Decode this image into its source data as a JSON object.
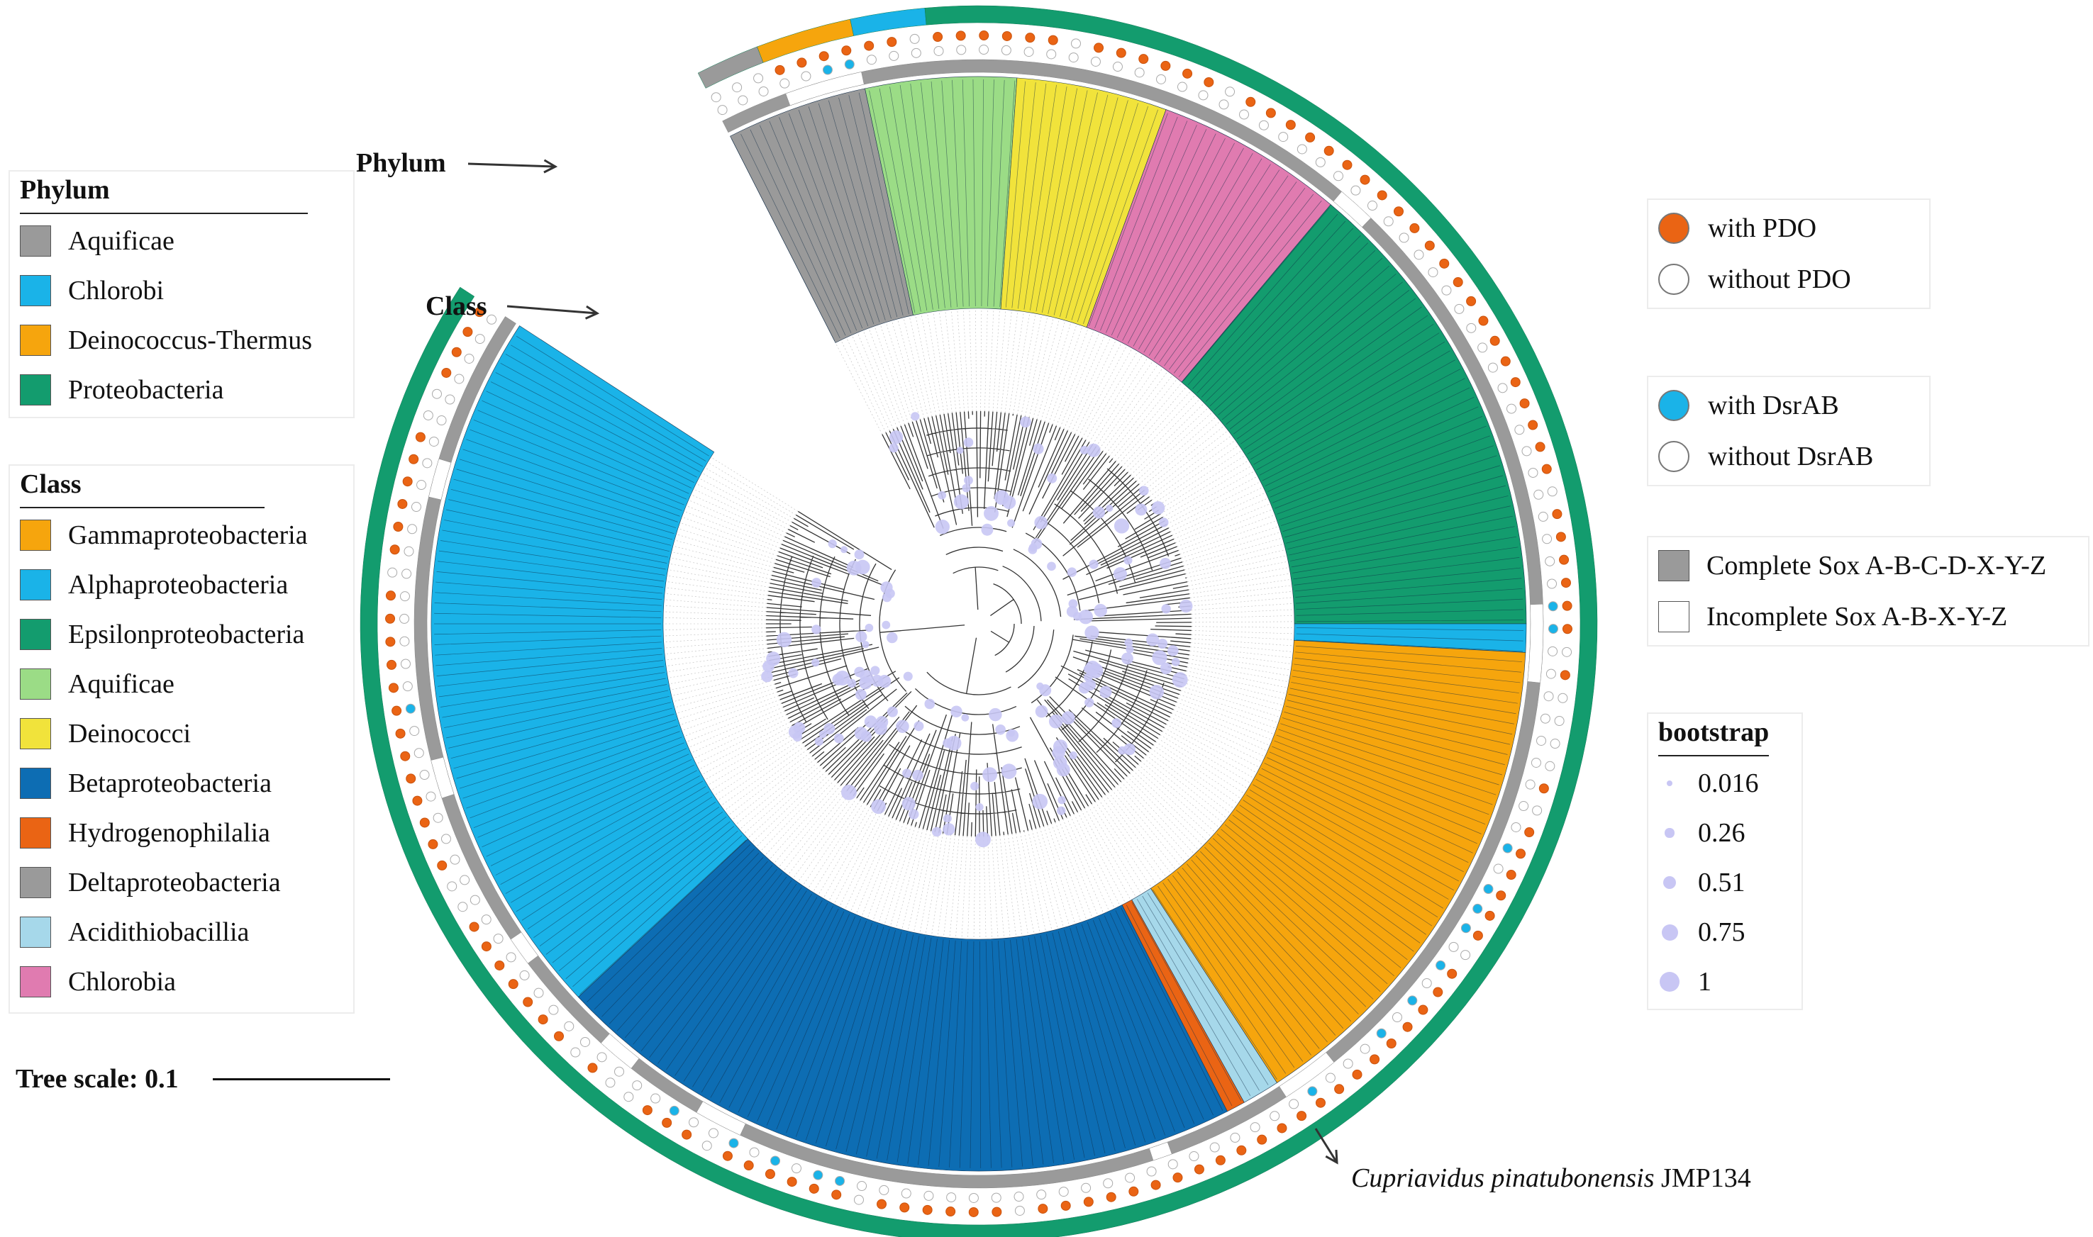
{
  "legends": {
    "phylum": {
      "title": "Phylum",
      "items": [
        {
          "label": "Aquificae",
          "color": "#9a9a9a"
        },
        {
          "label": "Chlorobi",
          "color": "#1ab3e8"
        },
        {
          "label": "Deinococcus-Thermus",
          "color": "#f6a50d"
        },
        {
          "label": "Proteobacteria",
          "color": "#139c6e"
        }
      ]
    },
    "class": {
      "title": "Class",
      "items": [
        {
          "label": "Gammaproteobacteria",
          "color": "#f6a50d"
        },
        {
          "label": "Alphaproteobacteria",
          "color": "#1ab3e8"
        },
        {
          "label": "Epsilonproteobacteria",
          "color": "#139c6e"
        },
        {
          "label": "Aquificae",
          "color": "#9bdc86"
        },
        {
          "label": "Deinococci",
          "color": "#f1e33b"
        },
        {
          "label": "Betaproteobacteria",
          "color": "#0d6db3"
        },
        {
          "label": "Hydrogenophilalia",
          "color": "#ea6414"
        },
        {
          "label": "Deltaproteobacteria",
          "color": "#9a9a9a"
        },
        {
          "label": "Acidithiobacillia",
          "color": "#a6d8ea"
        },
        {
          "label": "Chlorobia",
          "color": "#e07bb0"
        }
      ]
    },
    "pdo": {
      "items": [
        {
          "label": "with PDO",
          "color": "#ea6414"
        },
        {
          "label": "without PDO",
          "color": "#ffffff"
        }
      ]
    },
    "dsrab": {
      "items": [
        {
          "label": "with DsrAB",
          "color": "#1ab3e8"
        },
        {
          "label": "without DsrAB",
          "color": "#ffffff"
        }
      ]
    },
    "sox": {
      "items": [
        {
          "label": "Complete Sox A-B-C-D-X-Y-Z",
          "color": "#9a9a9a"
        },
        {
          "label": "Incomplete Sox A-B-X-Y-Z",
          "color": "#ffffff"
        }
      ]
    },
    "bootstrap": {
      "title": "bootstrap",
      "items": [
        {
          "label": "0.016",
          "value": 0.016
        },
        {
          "label": "0.26",
          "value": 0.26
        },
        {
          "label": "0.51",
          "value": 0.51
        },
        {
          "label": "0.75",
          "value": 0.75
        },
        {
          "label": "1",
          "value": 1
        }
      ]
    }
  },
  "pointers": {
    "phylum": "Phylum",
    "class": "Class"
  },
  "tree_scale": "Tree scale: 0.1",
  "annotation": {
    "species": "Cupriavidus pinatubonensis",
    "strain": "JMP134"
  },
  "colors": {
    "orange": "#f6a50d",
    "sky": "#1ab3e8",
    "green": "#139c6e",
    "lightgreen": "#9bdc86",
    "yellow": "#f1e33b",
    "navy": "#0d6db3",
    "red": "#ea6414",
    "grey": "#9a9a9a",
    "paleblue": "#a6d8ea",
    "pink": "#e07bb0",
    "bootstrap": "#c8c6f4"
  }
}
